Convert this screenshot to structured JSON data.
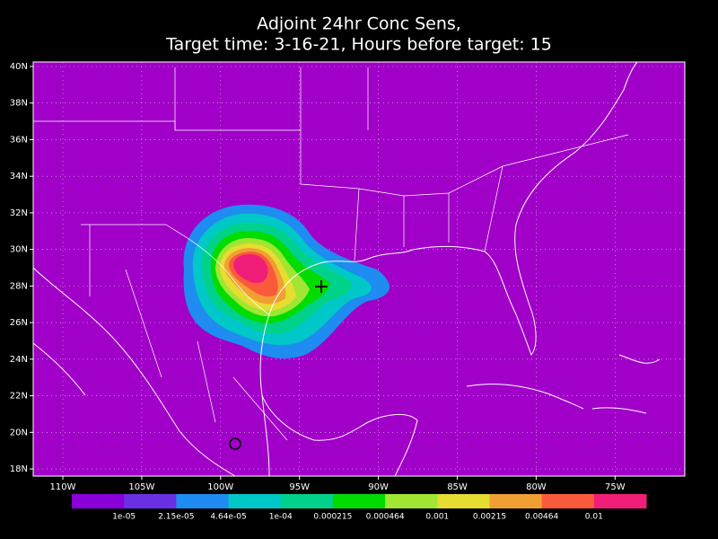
{
  "title": [
    "Adjoint 24hr Conc Sens,",
    "Target time: 3-16-21, Hours before target: 15"
  ],
  "lat_labels": [
    "40N",
    "38N",
    "36N",
    "34N",
    "32N",
    "30N",
    "28N",
    "26N",
    "24N",
    "22N",
    "20N",
    "18N"
  ],
  "lon_labels": [
    "110W",
    "105W",
    "100W",
    "95W",
    "90W",
    "85W",
    "80W",
    "75W"
  ],
  "map_background": "#a000c8",
  "colorbar": {
    "colors": [
      "#8a00d8",
      "#6a30e4",
      "#1e8cf0",
      "#00c8c8",
      "#00d28c",
      "#00dc00",
      "#a0e632",
      "#e6dc32",
      "#f0a032",
      "#fa5a3c",
      "#f01e78"
    ],
    "labels": [
      "1e-05",
      "2.15e-05",
      "4.64e-05",
      "1e-04",
      "0.000215",
      "0.000464",
      "0.001",
      "0.00215",
      "0.00464",
      "0.01"
    ]
  }
}
